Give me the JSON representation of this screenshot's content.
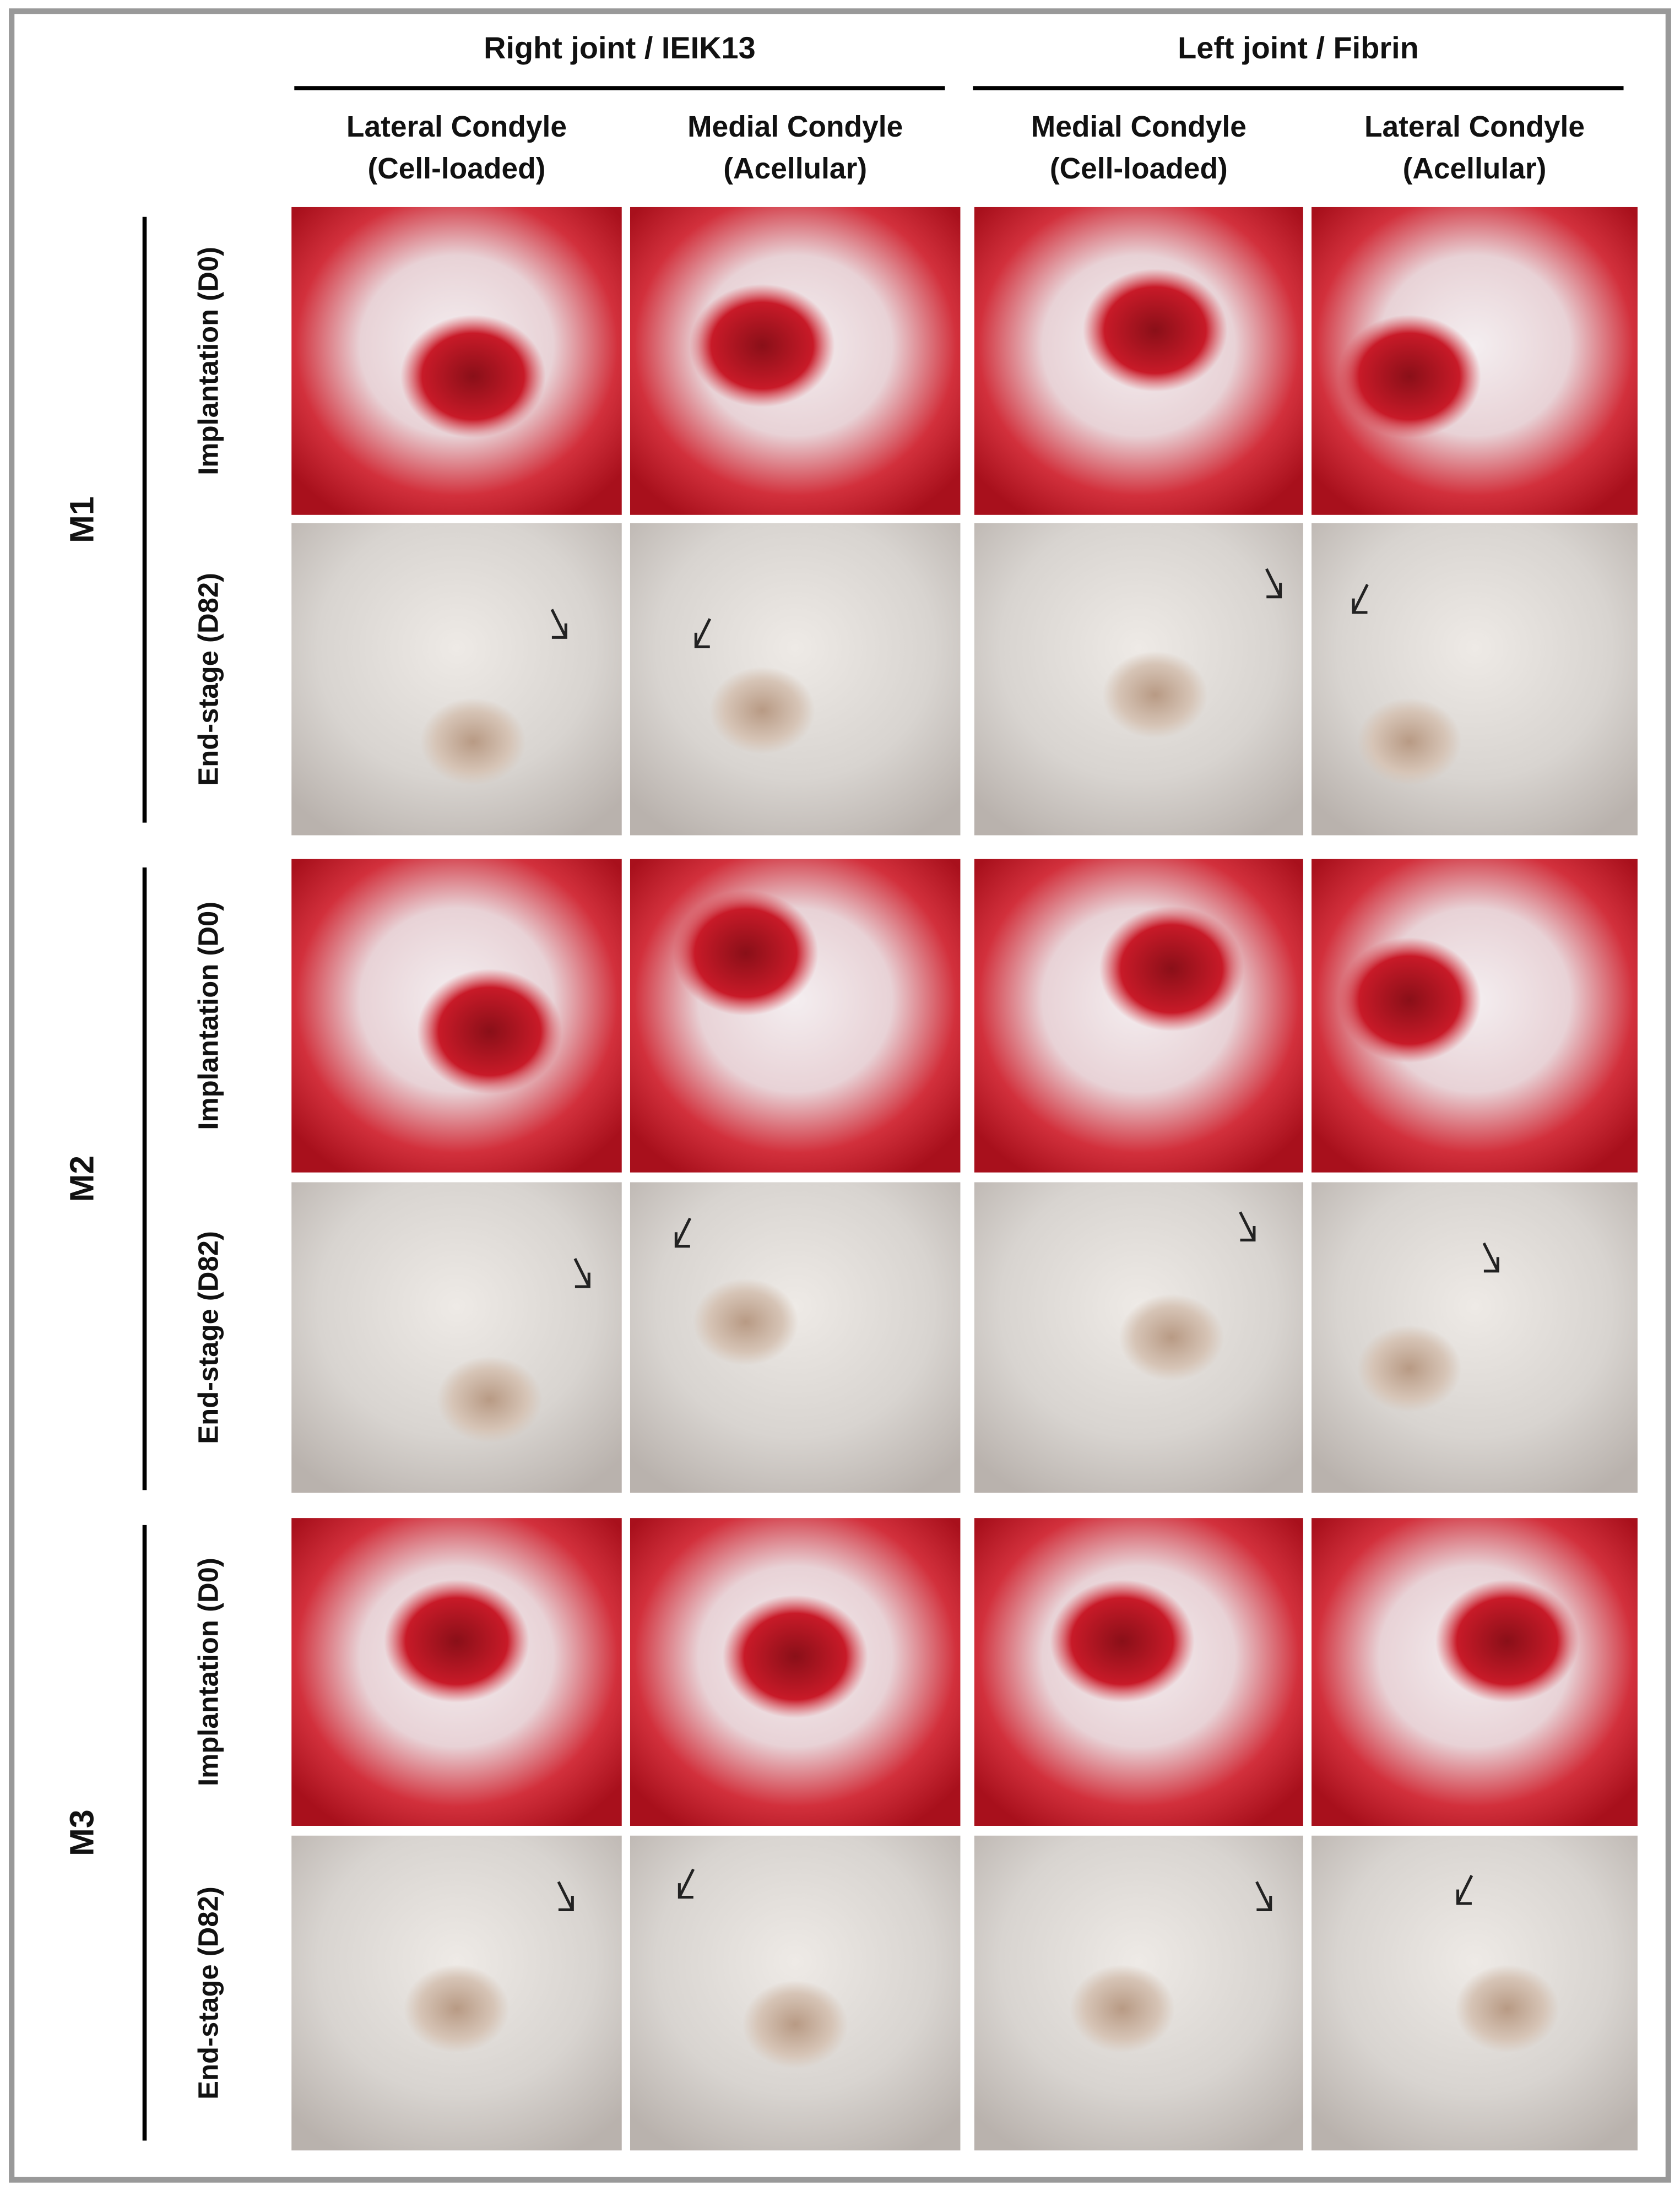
{
  "groups": [
    {
      "title": "Right joint / IEIK13",
      "columns": [
        {
          "line1": "Lateral Condyle",
          "line2": "(Cell-loaded)"
        },
        {
          "line1": "Medial Condyle",
          "line2": "(Acellular)"
        }
      ]
    },
    {
      "title": "Left joint / Fibrin",
      "columns": [
        {
          "line1": "Medial Condyle",
          "line2": "(Cell-loaded)"
        },
        {
          "line1": "Lateral Condyle",
          "line2": "(Acellular)"
        }
      ]
    }
  ],
  "mice": [
    {
      "label": "M1",
      "rows": [
        "Implantation (D0)",
        "End-stage (D82)"
      ]
    },
    {
      "label": "M2",
      "rows": [
        "Implantation (D0)",
        "End-stage (D82)"
      ]
    },
    {
      "label": "M3",
      "rows": [
        "Implantation (D0)",
        "End-stage (D82)"
      ]
    }
  ]
}
